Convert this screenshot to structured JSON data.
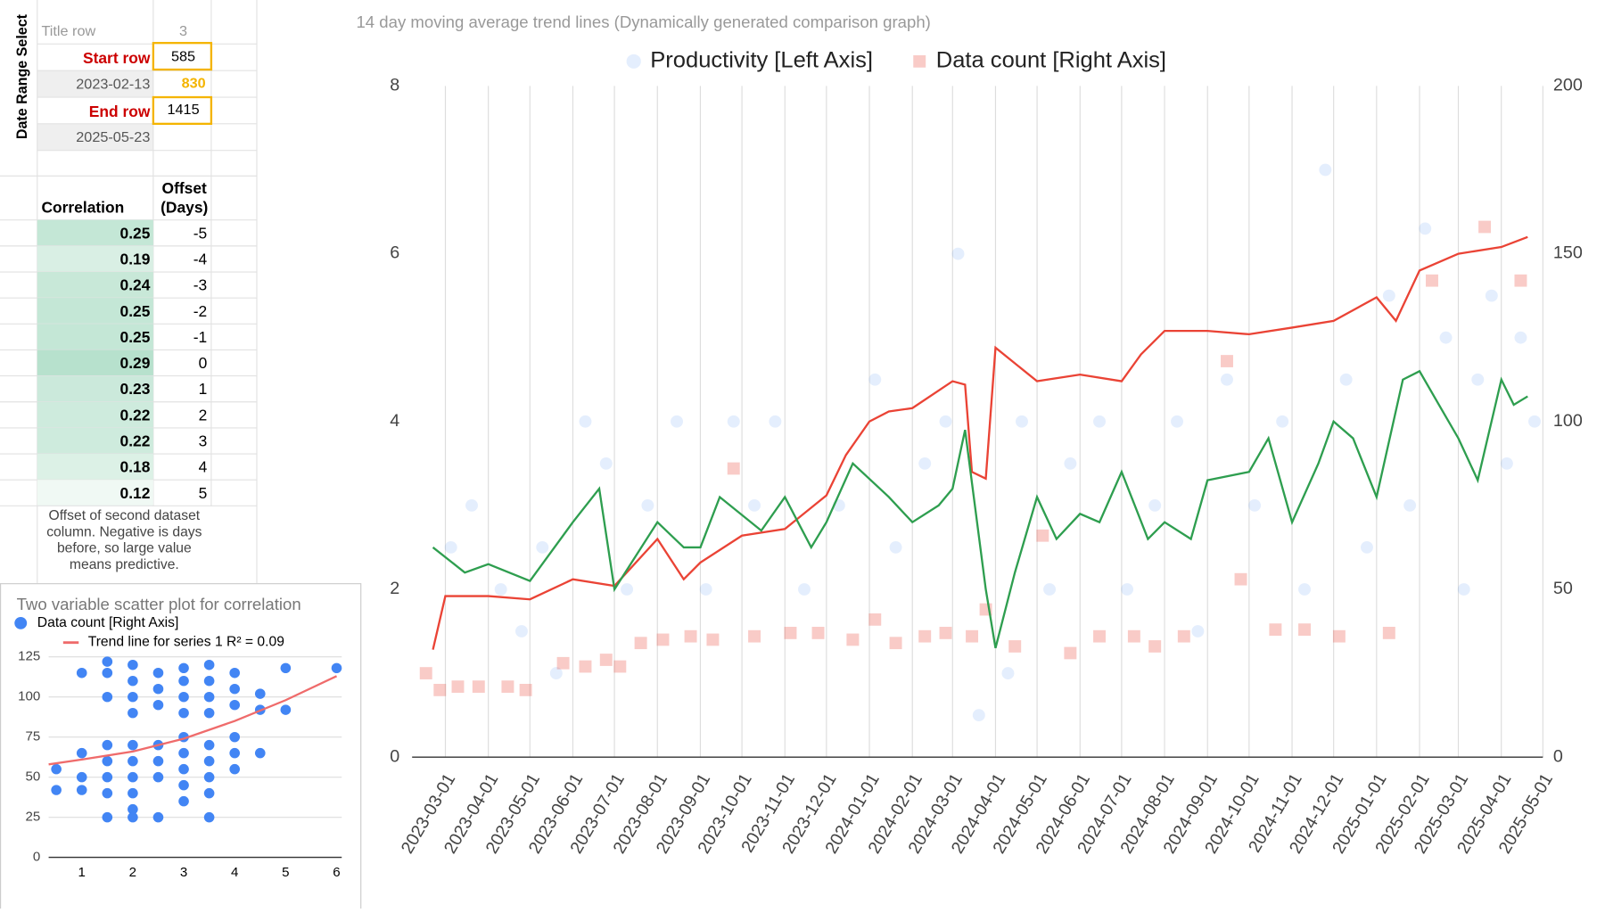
{
  "date_range": {
    "side_label": "Date Range Select",
    "title_row_label": "Title row",
    "title_row": 3,
    "start_row_label": "Start row",
    "start_row": 585,
    "start_date": "2023-02-13",
    "start_index": 830,
    "end_row_label": "End row",
    "end_row": 1415,
    "end_date": "2025-05-23"
  },
  "correlation_table": {
    "correlation_header": "Correlation",
    "offset_header": [
      "Offset",
      "(Days)"
    ],
    "rows": [
      {
        "correlation": 0.25,
        "offset": -5
      },
      {
        "correlation": 0.19,
        "offset": -4
      },
      {
        "correlation": 0.24,
        "offset": -3
      },
      {
        "correlation": 0.25,
        "offset": -2
      },
      {
        "correlation": 0.25,
        "offset": -1
      },
      {
        "correlation": 0.29,
        "offset": 0
      },
      {
        "correlation": 0.23,
        "offset": 1
      },
      {
        "correlation": 0.22,
        "offset": 2
      },
      {
        "correlation": 0.22,
        "offset": 3
      },
      {
        "correlation": 0.18,
        "offset": 4
      },
      {
        "correlation": 0.12,
        "offset": 5
      }
    ],
    "note": "Offset of second dataset column. Negative is days before, so large value means predictive."
  },
  "chart_data": [
    {
      "type": "scatter",
      "title": "14 day moving average trend lines (Dynamically generated comparison graph)",
      "legend": "top",
      "grid": "x",
      "xlim": [
        "2023-02-05",
        "2025-05-01"
      ],
      "xticks": [
        "2023-03-01",
        "2023-04-01",
        "2023-05-01",
        "2023-06-01",
        "2023-07-01",
        "2023-08-01",
        "2023-09-01",
        "2023-10-01",
        "2023-11-01",
        "2023-12-01",
        "2024-01-01",
        "2024-02-01",
        "2024-03-01",
        "2024-04-01",
        "2024-05-01",
        "2024-06-01",
        "2024-07-01",
        "2024-08-01",
        "2024-09-01",
        "2024-10-01",
        "2024-11-01",
        "2024-12-01",
        "2025-01-01",
        "2025-02-01",
        "2025-03-01",
        "2025-04-01",
        "2025-05-01"
      ],
      "ylim": [
        0,
        8
      ],
      "yticks": [
        0,
        2,
        4,
        6,
        8
      ],
      "y2lim": [
        0,
        200
      ],
      "y2ticks": [
        0,
        50,
        100,
        150,
        200
      ],
      "series": [
        {
          "name": "Productivity [Left Axis]",
          "color": "#4285f4",
          "marker": "circle",
          "x": [
            "2023-03-05",
            "2023-03-20",
            "2023-04-10",
            "2023-04-25",
            "2023-05-10",
            "2023-05-20",
            "2023-06-10",
            "2023-06-25",
            "2023-07-10",
            "2023-07-25",
            "2023-08-15",
            "2023-09-05",
            "2023-09-25",
            "2023-10-10",
            "2023-10-25",
            "2023-11-15",
            "2023-12-10",
            "2024-01-05",
            "2024-01-20",
            "2024-02-10",
            "2024-02-25",
            "2024-03-05",
            "2024-03-20",
            "2024-04-10",
            "2024-04-20",
            "2024-05-10",
            "2024-05-25",
            "2024-06-15",
            "2024-07-05",
            "2024-07-25",
            "2024-08-10",
            "2024-08-25",
            "2024-09-15",
            "2024-10-05",
            "2024-10-25",
            "2024-11-10",
            "2024-11-25",
            "2024-12-10",
            "2024-12-25",
            "2025-01-10",
            "2025-01-25",
            "2025-02-05",
            "2025-02-20",
            "2025-03-05",
            "2025-03-15",
            "2025-03-25",
            "2025-04-05",
            "2025-04-15",
            "2025-04-25"
          ],
          "values": [
            2.5,
            3,
            2,
            1.5,
            2.5,
            1,
            4,
            3.5,
            2,
            3,
            4,
            2,
            4,
            3,
            4,
            2,
            3,
            4.5,
            2.5,
            3.5,
            4,
            6,
            0.5,
            1,
            4,
            2,
            3.5,
            4,
            2,
            3,
            4,
            1.5,
            4.5,
            3,
            4,
            2,
            7,
            4.5,
            2.5,
            5.5,
            3,
            6.3,
            5,
            2,
            4.5,
            5.5,
            3.5,
            5,
            4
          ]
        },
        {
          "name": "Data count [Right Axis]",
          "color": "#ea4335",
          "marker": "square",
          "axis": "y2",
          "x": [
            "2023-02-15",
            "2023-02-25",
            "2023-03-10",
            "2023-03-25",
            "2023-04-15",
            "2023-04-28",
            "2023-05-25",
            "2023-06-10",
            "2023-06-25",
            "2023-07-05",
            "2023-07-20",
            "2023-08-05",
            "2023-08-25",
            "2023-09-10",
            "2023-09-25",
            "2023-10-10",
            "2023-11-05",
            "2023-11-25",
            "2023-12-20",
            "2024-01-05",
            "2024-01-20",
            "2024-02-10",
            "2024-02-25",
            "2024-03-15",
            "2024-03-25",
            "2024-04-15",
            "2024-05-05",
            "2024-05-25",
            "2024-06-15",
            "2024-07-10",
            "2024-07-25",
            "2024-08-15",
            "2024-09-15",
            "2024-09-25",
            "2024-10-20",
            "2024-11-10",
            "2024-12-05",
            "2025-01-10",
            "2025-02-10",
            "2025-03-20",
            "2025-04-15"
          ],
          "values": [
            25,
            20,
            21,
            21,
            21,
            20,
            28,
            27,
            29,
            27,
            34,
            35,
            36,
            35,
            86,
            36,
            37,
            37,
            35,
            41,
            34,
            36,
            37,
            36,
            44,
            33,
            66,
            31,
            36,
            36,
            33,
            36,
            118,
            53,
            38,
            38,
            36,
            37,
            142,
            158,
            142
          ]
        }
      ],
      "trend_lines": [
        {
          "color": "#ea4335",
          "axis": "y2",
          "x": [
            "2023-02-20",
            "2023-03-01",
            "2023-04-01",
            "2023-05-01",
            "2023-06-01",
            "2023-07-01",
            "2023-08-01",
            "2023-08-20",
            "2023-09-01",
            "2023-10-01",
            "2023-11-01",
            "2023-12-01",
            "2023-12-15",
            "2024-01-01",
            "2024-01-15",
            "2024-02-01",
            "2024-03-01",
            "2024-03-10",
            "2024-03-15",
            "2024-03-25",
            "2024-04-01",
            "2024-05-01",
            "2024-06-01",
            "2024-07-01",
            "2024-07-15",
            "2024-08-01",
            "2024-09-01",
            "2024-10-01",
            "2024-11-01",
            "2024-12-01",
            "2025-01-01",
            "2025-01-15",
            "2025-02-01",
            "2025-03-01",
            "2025-04-01",
            "2025-04-20"
          ],
          "values": [
            32,
            48,
            48,
            47,
            53,
            51,
            65,
            53,
            58,
            66,
            68,
            78,
            90,
            100,
            103,
            104,
            112,
            111,
            85,
            83,
            122,
            112,
            114,
            112,
            120,
            127,
            127,
            126,
            128,
            130,
            137,
            130,
            145,
            150,
            152,
            155
          ]
        },
        {
          "color": "#2e9e4f",
          "x": [
            "2023-02-20",
            "2023-03-15",
            "2023-04-01",
            "2023-05-01",
            "2023-06-01",
            "2023-06-20",
            "2023-07-01",
            "2023-08-01",
            "2023-08-20",
            "2023-09-01",
            "2023-09-15",
            "2023-10-15",
            "2023-11-01",
            "2023-11-20",
            "2023-12-01",
            "2023-12-20",
            "2024-01-15",
            "2024-02-01",
            "2024-02-20",
            "2024-03-01",
            "2024-03-10",
            "2024-03-25",
            "2024-04-01",
            "2024-04-15",
            "2024-05-01",
            "2024-05-15",
            "2024-06-01",
            "2024-06-15",
            "2024-07-01",
            "2024-07-20",
            "2024-08-01",
            "2024-08-20",
            "2024-09-01",
            "2024-10-01",
            "2024-10-15",
            "2024-11-01",
            "2024-11-20",
            "2024-12-01",
            "2024-12-15",
            "2025-01-01",
            "2025-01-20",
            "2025-02-01",
            "2025-02-15",
            "2025-03-01",
            "2025-03-15",
            "2025-04-01",
            "2025-04-10",
            "2025-04-20"
          ],
          "values": [
            2.5,
            2.2,
            2.3,
            2.1,
            2.8,
            3.2,
            2.0,
            2.8,
            2.5,
            2.5,
            3.1,
            2.7,
            3.1,
            2.5,
            2.8,
            3.5,
            3.1,
            2.8,
            3.0,
            3.2,
            3.9,
            2.0,
            1.3,
            2.2,
            3.1,
            2.6,
            2.9,
            2.8,
            3.4,
            2.6,
            2.8,
            2.6,
            3.3,
            3.4,
            3.8,
            2.8,
            3.5,
            4.0,
            3.8,
            3.1,
            4.5,
            4.6,
            4.2,
            3.8,
            3.3,
            4.5,
            4.2,
            4.3
          ]
        }
      ]
    },
    {
      "type": "scatter",
      "title": "Two variable scatter plot for correlation",
      "legend": "top",
      "grid": "y",
      "xlim": [
        0.35,
        6.1
      ],
      "xticks": [
        1,
        2,
        3,
        4,
        5,
        6
      ],
      "ylim": [
        0,
        125
      ],
      "yticks": [
        0,
        25,
        50,
        75,
        100,
        125
      ],
      "series": [
        {
          "name": "Data count [Right Axis]",
          "color": "#4285f4",
          "x": [
            0.5,
            0.5,
            1,
            1,
            1,
            1,
            1.5,
            1.5,
            1.5,
            1.5,
            1.5,
            1.5,
            1.5,
            1.5,
            2,
            2,
            2,
            2,
            2,
            2,
            2,
            2,
            2,
            2,
            2.5,
            2.5,
            2.5,
            2.5,
            2.5,
            2.5,
            2.5,
            3,
            3,
            3,
            3,
            3,
            3,
            3,
            3,
            3,
            3.5,
            3.5,
            3.5,
            3.5,
            3.5,
            3.5,
            3.5,
            3.5,
            3.5,
            4,
            4,
            4,
            4,
            4,
            4,
            4.5,
            4.5,
            4.5,
            5,
            5,
            6
          ],
          "values": [
            55,
            42,
            115,
            65,
            50,
            42,
            122,
            115,
            100,
            70,
            60,
            50,
            40,
            25,
            120,
            110,
            100,
            90,
            70,
            60,
            50,
            40,
            30,
            25,
            115,
            105,
            95,
            70,
            60,
            50,
            25,
            118,
            110,
            100,
            90,
            75,
            65,
            55,
            45,
            35,
            120,
            110,
            100,
            90,
            70,
            60,
            50,
            40,
            25,
            115,
            105,
            95,
            75,
            65,
            55,
            102,
            92,
            65,
            118,
            92,
            118
          ]
        }
      ],
      "trend_line": {
        "name": "Trend line for series 1 R² = 0.09",
        "color": "#ef6b6b",
        "x": [
          0.35,
          1,
          2,
          3,
          4,
          5,
          6
        ],
        "values": [
          58,
          61,
          66,
          74,
          85,
          98,
          113
        ]
      }
    }
  ]
}
